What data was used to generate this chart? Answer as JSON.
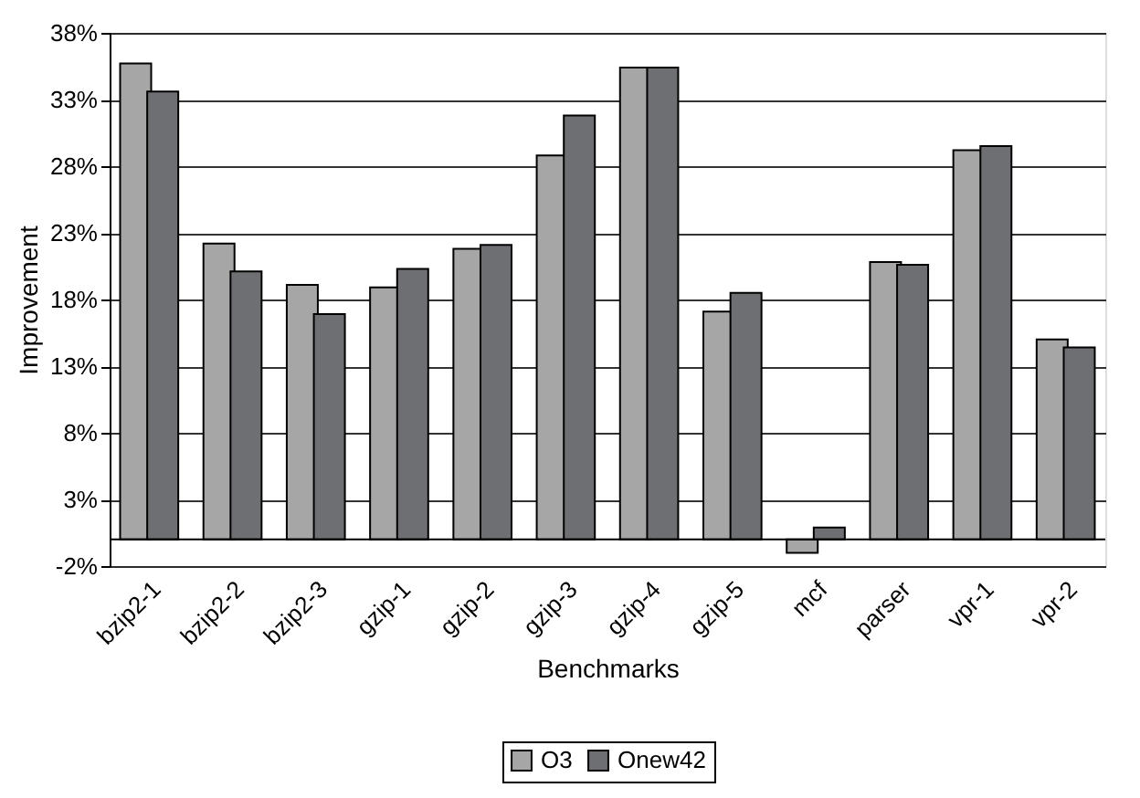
{
  "chart_data": {
    "type": "bar",
    "xlabel": "Benchmarks",
    "ylabel": "Improvement",
    "categories": [
      "bzip2-1",
      "bzip2-2",
      "bzip2-3",
      "gzip-1",
      "gzip-2",
      "gzip-3",
      "gzip-4",
      "gzip-5",
      "mcf",
      "parser",
      "vpr-1",
      "vpr-2"
    ],
    "series": [
      {
        "name": "O3",
        "color": "#a6a6a6",
        "values": [
          35.7,
          22.2,
          19.1,
          18.9,
          21.8,
          28.8,
          35.4,
          17.1,
          -1.0,
          20.8,
          29.2,
          15.0
        ]
      },
      {
        "name": "Onew42",
        "color": "#6e6f73",
        "values": [
          33.6,
          20.1,
          16.9,
          20.3,
          22.1,
          31.8,
          35.4,
          18.5,
          0.9,
          20.6,
          29.5,
          14.4
        ]
      }
    ],
    "ylim": [
      -2,
      38
    ],
    "yticks": [
      {
        "value": -2,
        "label": "-2%"
      },
      {
        "value": 3,
        "label": "3%"
      },
      {
        "value": 8,
        "label": "8%"
      },
      {
        "value": 13,
        "label": "13%"
      },
      {
        "value": 18,
        "label": "18%"
      },
      {
        "value": 23,
        "label": "23%"
      },
      {
        "value": 28,
        "label": "28%"
      },
      {
        "value": 33,
        "label": "33%"
      },
      {
        "value": 38,
        "label": "38%"
      }
    ],
    "grid": "y",
    "legend": "bottom"
  }
}
